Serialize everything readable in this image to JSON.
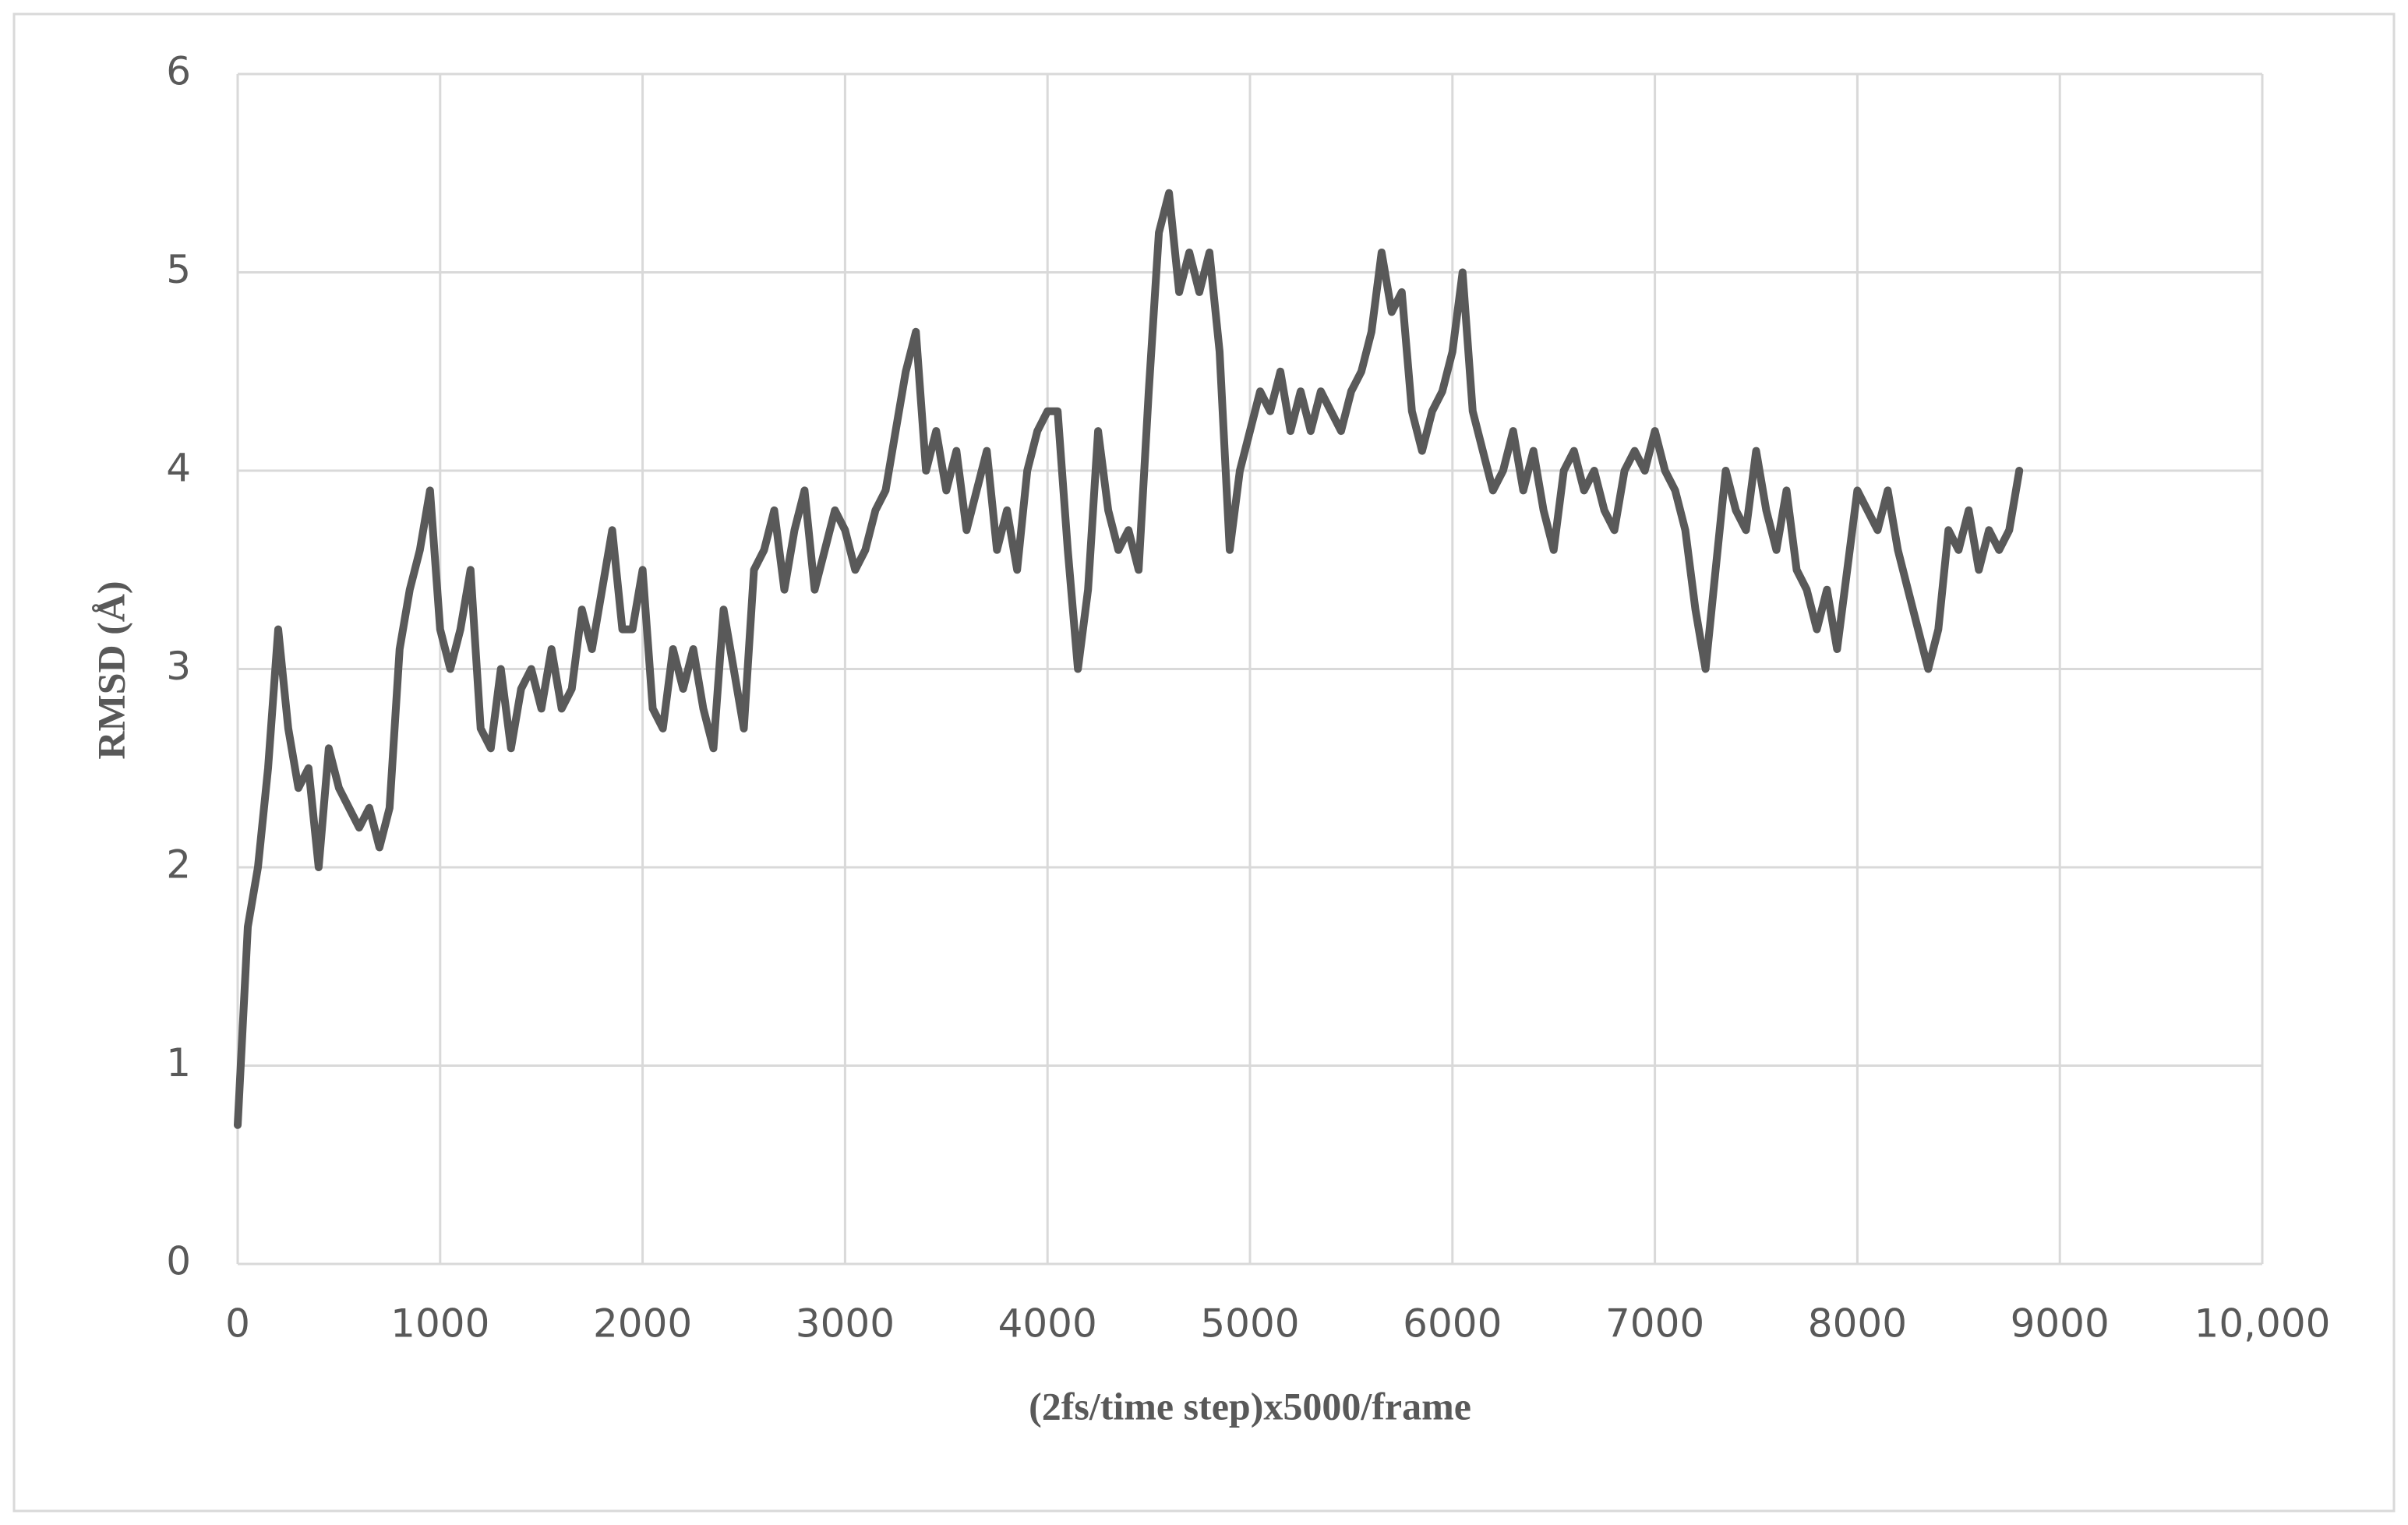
{
  "chart_data": {
    "type": "line",
    "xlabel": "(2fs/time step)x5000/frame",
    "ylabel": "RMSD (Å)",
    "xlim": [
      0,
      10000
    ],
    "xticks": [
      0,
      1000,
      2000,
      3000,
      4000,
      5000,
      6000,
      7000,
      8000,
      9000,
      {
        "value": 10000,
        "label": "10,000"
      }
    ],
    "ylim": [
      0,
      6
    ],
    "yticks": [
      0,
      1,
      2,
      3,
      4,
      5,
      6
    ],
    "grid": true,
    "series": [
      {
        "color": "#595959",
        "x": [
          0,
          50,
          100,
          150,
          200,
          250,
          300,
          350,
          400,
          450,
          500,
          550,
          600,
          650,
          700,
          750,
          800,
          850,
          900,
          950,
          1000,
          1050,
          1100,
          1150,
          1200,
          1250,
          1300,
          1350,
          1400,
          1450,
          1500,
          1550,
          1600,
          1650,
          1700,
          1750,
          1800,
          1850,
          1900,
          1950,
          2000,
          2050,
          2100,
          2150,
          2200,
          2250,
          2300,
          2350,
          2400,
          2450,
          2500,
          2550,
          2600,
          2650,
          2700,
          2750,
          2800,
          2850,
          2900,
          2950,
          3000,
          3050,
          3100,
          3150,
          3200,
          3250,
          3300,
          3350,
          3400,
          3450,
          3500,
          3550,
          3600,
          3650,
          3700,
          3750,
          3800,
          3850,
          3900,
          3950,
          4000,
          4050,
          4100,
          4150,
          4200,
          4250,
          4300,
          4350,
          4400,
          4450,
          4500,
          4550,
          4600,
          4650,
          4700,
          4750,
          4800,
          4850,
          4900,
          4950,
          5000,
          5050,
          5100,
          5150,
          5200,
          5250,
          5300,
          5350,
          5400,
          5450,
          5500,
          5550,
          5600,
          5650,
          5700,
          5750,
          5800,
          5850,
          5900,
          5950,
          6000,
          6050,
          6100,
          6150,
          6200,
          6250,
          6300,
          6350,
          6400,
          6450,
          6500,
          6550,
          6600,
          6650,
          6700,
          6750,
          6800,
          6850,
          6900,
          6950,
          7000,
          7050,
          7100,
          7150,
          7200,
          7250,
          7300,
          7350,
          7400,
          7450,
          7500,
          7550,
          7600,
          7650,
          7700,
          7750,
          7800,
          7850,
          7900,
          7950,
          8000,
          8050,
          8100,
          8150,
          8200,
          8250,
          8300,
          8350,
          8400,
          8450,
          8500,
          8550,
          8600,
          8650,
          8700,
          8750,
          8800
        ],
        "values": [
          0.7,
          1.7,
          2.0,
          2.5,
          3.2,
          2.7,
          2.4,
          2.5,
          2.0,
          2.6,
          2.4,
          2.3,
          2.2,
          2.3,
          2.1,
          2.3,
          3.1,
          3.4,
          3.6,
          3.9,
          3.2,
          3.0,
          3.2,
          3.5,
          2.7,
          2.6,
          3.0,
          2.6,
          2.9,
          3.0,
          2.8,
          3.1,
          2.8,
          2.9,
          3.3,
          3.1,
          3.4,
          3.7,
          3.2,
          3.2,
          3.5,
          2.8,
          2.7,
          3.1,
          2.9,
          3.1,
          2.8,
          2.6,
          3.3,
          3.0,
          2.7,
          3.5,
          3.6,
          3.8,
          3.4,
          3.7,
          3.9,
          3.4,
          3.6,
          3.8,
          3.7,
          3.5,
          3.6,
          3.8,
          3.9,
          4.2,
          4.5,
          4.7,
          4.0,
          4.2,
          3.9,
          4.1,
          3.7,
          3.9,
          4.1,
          3.6,
          3.8,
          3.5,
          4.0,
          4.2,
          4.3,
          4.3,
          3.6,
          3.0,
          3.4,
          4.2,
          3.8,
          3.6,
          3.7,
          3.5,
          4.4,
          5.2,
          5.4,
          4.9,
          5.1,
          4.9,
          5.1,
          4.6,
          3.6,
          4.0,
          4.2,
          4.4,
          4.3,
          4.5,
          4.2,
          4.4,
          4.2,
          4.4,
          4.3,
          4.2,
          4.4,
          4.5,
          4.7,
          5.1,
          4.8,
          4.9,
          4.3,
          4.1,
          4.3,
          4.4,
          4.6,
          5.0,
          4.3,
          4.1,
          3.9,
          4.0,
          4.2,
          3.9,
          4.1,
          3.8,
          3.6,
          4.0,
          4.1,
          3.9,
          4.0,
          3.8,
          3.7,
          4.0,
          4.1,
          4.0,
          4.2,
          4.0,
          3.9,
          3.7,
          3.3,
          3.0,
          3.5,
          4.0,
          3.8,
          3.7,
          4.1,
          3.8,
          3.6,
          3.9,
          3.5,
          3.4,
          3.2,
          3.4,
          3.1,
          3.5,
          3.9,
          3.8,
          3.7,
          3.9,
          3.6,
          3.4,
          3.2,
          3.0,
          3.2,
          3.7,
          3.6,
          3.8,
          3.5,
          3.7,
          3.6,
          3.7,
          4.0
        ]
      }
    ]
  }
}
